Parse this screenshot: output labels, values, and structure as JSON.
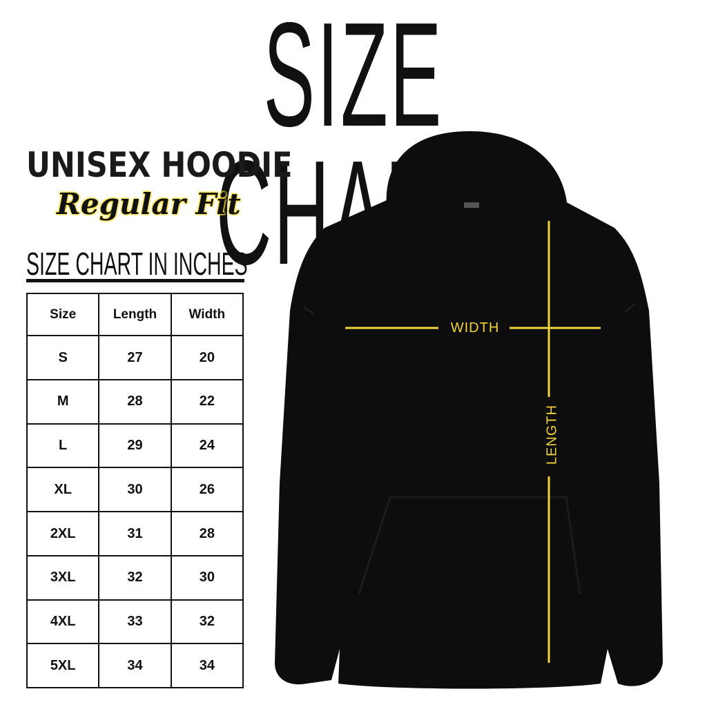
{
  "title": "SIZE CHART",
  "product": "UNISEX HOODIE",
  "fit": "Regular Fit",
  "unit_heading": "SIZE CHART IN INCHES",
  "table": {
    "headers": [
      "Size",
      "Length",
      "Width"
    ],
    "rows": [
      [
        "S",
        "27",
        "20"
      ],
      [
        "M",
        "28",
        "22"
      ],
      [
        "L",
        "29",
        "24"
      ],
      [
        "XL",
        "30",
        "26"
      ],
      [
        "2XL",
        "31",
        "28"
      ],
      [
        "3XL",
        "32",
        "30"
      ],
      [
        "4XL",
        "33",
        "32"
      ],
      [
        "5XL",
        "34",
        "34"
      ]
    ]
  },
  "diagram": {
    "width_label": "WIDTH",
    "length_label": "LENGTH",
    "line_color": "#f2d43a",
    "garment_color": "#0d0d0d"
  }
}
